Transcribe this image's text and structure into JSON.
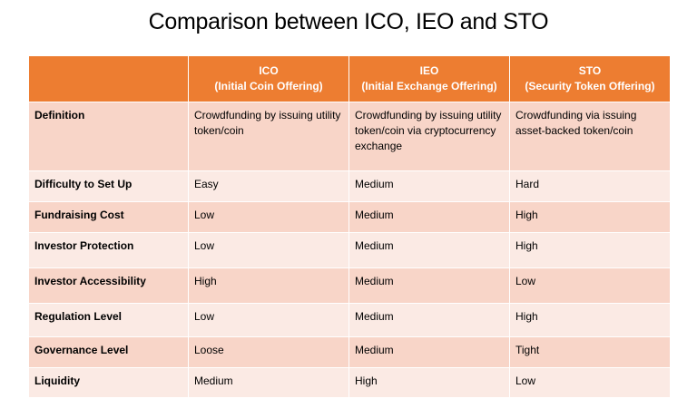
{
  "title": "Comparison between ICO, IEO and STO",
  "table": {
    "columns": [
      {
        "key": "ico",
        "line1": "ICO",
        "line2": "(Initial Coin Offering)"
      },
      {
        "key": "ieo",
        "line1": "IEO",
        "line2": "(Initial Exchange Offering)"
      },
      {
        "key": "sto",
        "line1": "STO",
        "line2": "(Security Token Offering)"
      }
    ],
    "rows": [
      {
        "label": "Definition",
        "ico": "Crowdfunding by issuing utility token/coin",
        "ieo": "Crowdfunding by issuing utility token/coin via cryptocurrency exchange",
        "sto": "Crowdfunding via issuing asset-backed token/coin"
      },
      {
        "label": "Difficulty to Set Up",
        "ico": "Easy",
        "ieo": "Medium",
        "sto": "Hard"
      },
      {
        "label": "Fundraising Cost",
        "ico": "Low",
        "ieo": "Medium",
        "sto": "High"
      },
      {
        "label": "Investor Protection",
        "ico": "Low",
        "ieo": "Medium",
        "sto": "High"
      },
      {
        "label": "Investor Accessibility",
        "ico": "High",
        "ieo": "Medium",
        "sto": "Low"
      },
      {
        "label": "Regulation Level",
        "ico": "Low",
        "ieo": "Medium",
        "sto": "High"
      },
      {
        "label": "Governance Level",
        "ico": "Loose",
        "ieo": "Medium",
        "sto": "Tight"
      },
      {
        "label": "Liquidity",
        "ico": "Medium",
        "ieo": "High",
        "sto": "Low"
      }
    ]
  },
  "colors": {
    "header": "#ed7d31",
    "row_odd": "#f8d5c8",
    "row_even": "#fbeae4"
  }
}
